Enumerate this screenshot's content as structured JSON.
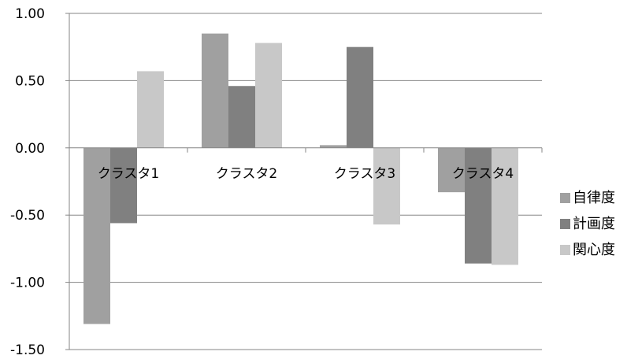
{
  "chart_data": {
    "type": "bar",
    "title": "",
    "xlabel": "",
    "ylabel": "",
    "categories": [
      "クラスタ1",
      "クラスタ2",
      "クラスタ3",
      "クラスタ4"
    ],
    "series": [
      {
        "name": "自律度",
        "values": [
          -1.31,
          0.85,
          0.02,
          -0.33
        ],
        "color": "#a0a0a0"
      },
      {
        "name": "計画度",
        "values": [
          -0.56,
          0.46,
          0.75,
          -0.86
        ],
        "color": "#808080"
      },
      {
        "name": "関心度",
        "values": [
          0.57,
          0.78,
          -0.57,
          -0.87
        ],
        "color": "#c8c8c8"
      }
    ],
    "ylim": [
      -1.5,
      1.0
    ],
    "yticks": [
      "1.00",
      "0.50",
      "0.00",
      "-0.50",
      "-1.00",
      "-1.50"
    ],
    "ytick_values": [
      1.0,
      0.5,
      0.0,
      -0.5,
      -1.0,
      -1.5
    ],
    "grid": true,
    "legend_position": "right"
  }
}
